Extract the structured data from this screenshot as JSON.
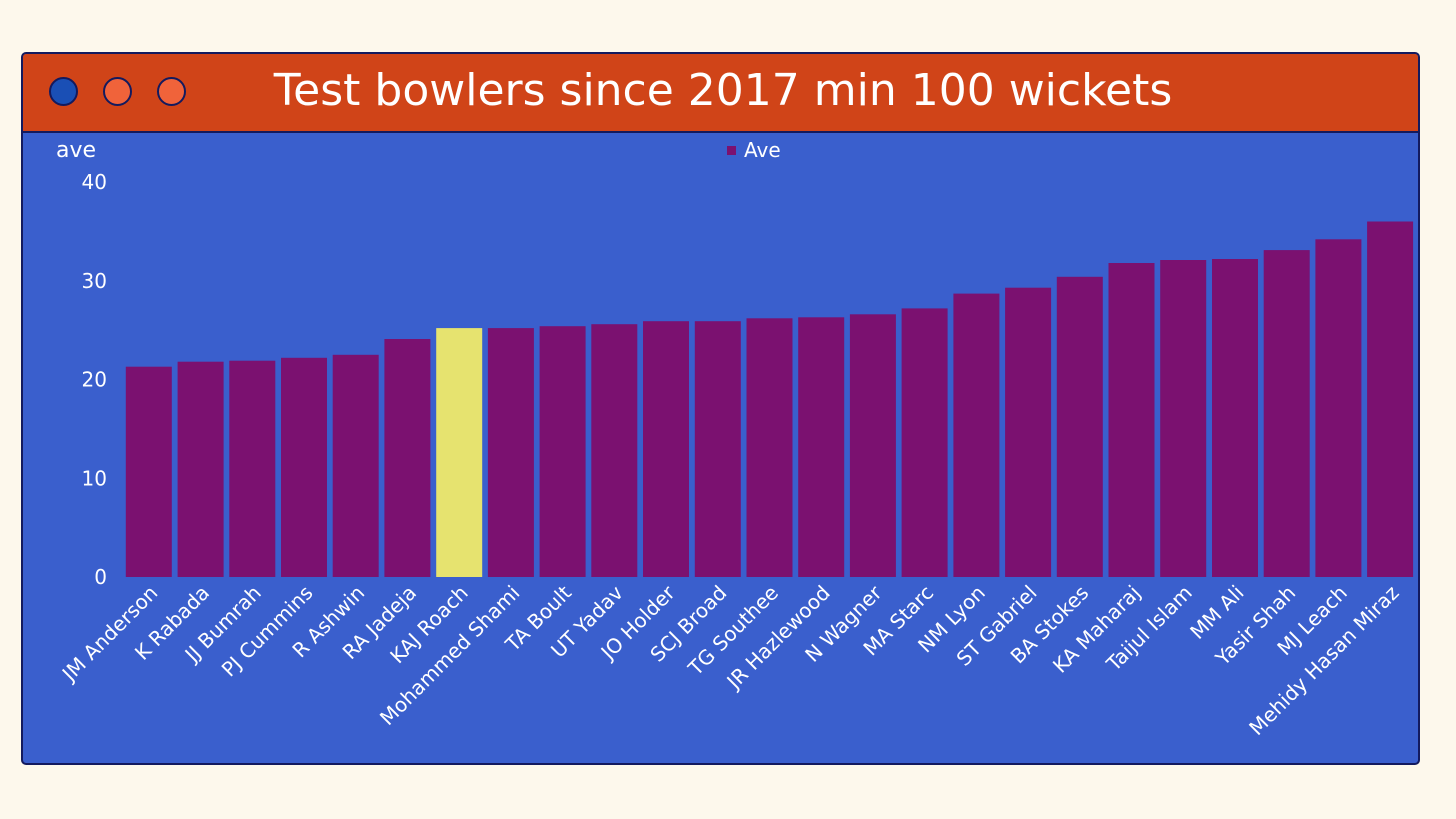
{
  "window": {
    "title": "Test bowlers since 2017 min 100 wickets",
    "controls": [
      {
        "name": "close",
        "color": "#1a4fb5"
      },
      {
        "name": "minimize",
        "color": "#f0633a"
      },
      {
        "name": "maximize",
        "color": "#f0633a"
      }
    ]
  },
  "colors": {
    "background": "#fdf8ec",
    "panel": "#3a5fcd",
    "titlebar": "#d04418",
    "bar": "#7b1170",
    "highlight_bar": "#e6e36f",
    "text": "#ffffff"
  },
  "chart_data": {
    "type": "bar",
    "title": "Test bowlers since 2017 min 100 wickets",
    "ylabel": "ave",
    "xlabel": "",
    "ylim": [
      0,
      40
    ],
    "yticks": [
      0,
      10,
      20,
      30,
      40
    ],
    "legend": {
      "position": "top-center",
      "entries": [
        "Ave"
      ]
    },
    "grid": false,
    "highlight": "KAJ Roach",
    "categories": [
      "JM Anderson",
      "K Rabada",
      "JJ Bumrah",
      "PJ Cummins",
      "R Ashwin",
      "RA Jadeja",
      "KAJ Roach",
      "Mohammed Shami",
      "TA Boult",
      "UT Yadav",
      "JO Holder",
      "SCJ Broad",
      "TG Southee",
      "JR Hazlewood",
      "N Wagner",
      "MA Starc",
      "NM Lyon",
      "ST Gabriel",
      "BA Stokes",
      "KA Maharaj",
      "Taijul Islam",
      "MM Ali",
      "Yasir Shah",
      "MJ Leach",
      "Mehidy Hasan Miraz"
    ],
    "series": [
      {
        "name": "Ave",
        "values": [
          21.3,
          21.8,
          21.9,
          22.2,
          22.5,
          24.1,
          25.2,
          25.2,
          25.4,
          25.6,
          25.9,
          25.9,
          26.2,
          26.3,
          26.6,
          27.2,
          28.7,
          29.3,
          30.4,
          31.8,
          32.1,
          32.2,
          33.1,
          34.2,
          36.0
        ]
      }
    ]
  }
}
